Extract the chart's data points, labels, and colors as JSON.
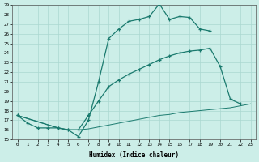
{
  "xlabel": "Humidex (Indice chaleur)",
  "xlim": [
    -0.5,
    23.5
  ],
  "ylim": [
    15,
    29
  ],
  "xticks": [
    0,
    1,
    2,
    3,
    4,
    5,
    6,
    7,
    8,
    9,
    10,
    11,
    12,
    13,
    14,
    15,
    16,
    17,
    18,
    19,
    20,
    21,
    22,
    23
  ],
  "yticks": [
    15,
    16,
    17,
    18,
    19,
    20,
    21,
    22,
    23,
    24,
    25,
    26,
    27,
    28,
    29
  ],
  "line_color": "#1a7a6e",
  "bg_color": "#cceee8",
  "grid_color": "#aad8d0",
  "line1_x": [
    0,
    1,
    2,
    3,
    4,
    5,
    6,
    7,
    8,
    9,
    10,
    11,
    12,
    13,
    14,
    15,
    16,
    17,
    18,
    19
  ],
  "line1_y": [
    17.5,
    16.7,
    16.2,
    16.2,
    16.2,
    16.0,
    15.3,
    17.0,
    21.0,
    25.5,
    26.5,
    27.3,
    27.5,
    27.8,
    29.1,
    27.5,
    27.8,
    27.7,
    26.5,
    26.3
  ],
  "line2_x": [
    0,
    4,
    5,
    6,
    7,
    8,
    9,
    10,
    11,
    12,
    13,
    14,
    15,
    16,
    17,
    18,
    19,
    20,
    21,
    22
  ],
  "line2_y": [
    17.5,
    16.2,
    16.0,
    16.0,
    17.5,
    19.0,
    20.5,
    21.2,
    21.8,
    22.3,
    22.8,
    23.3,
    23.7,
    24.0,
    24.2,
    24.3,
    24.5,
    22.6,
    19.2,
    18.7
  ],
  "line3_x": [
    0,
    4,
    5,
    6,
    7,
    8,
    9,
    10,
    11,
    12,
    13,
    14,
    15,
    16,
    17,
    18,
    19,
    20,
    21,
    22,
    23
  ],
  "line3_y": [
    17.5,
    16.2,
    16.0,
    16.0,
    16.1,
    16.3,
    16.5,
    16.7,
    16.9,
    17.1,
    17.3,
    17.5,
    17.6,
    17.8,
    17.9,
    18.0,
    18.1,
    18.2,
    18.3,
    18.5,
    18.7
  ]
}
